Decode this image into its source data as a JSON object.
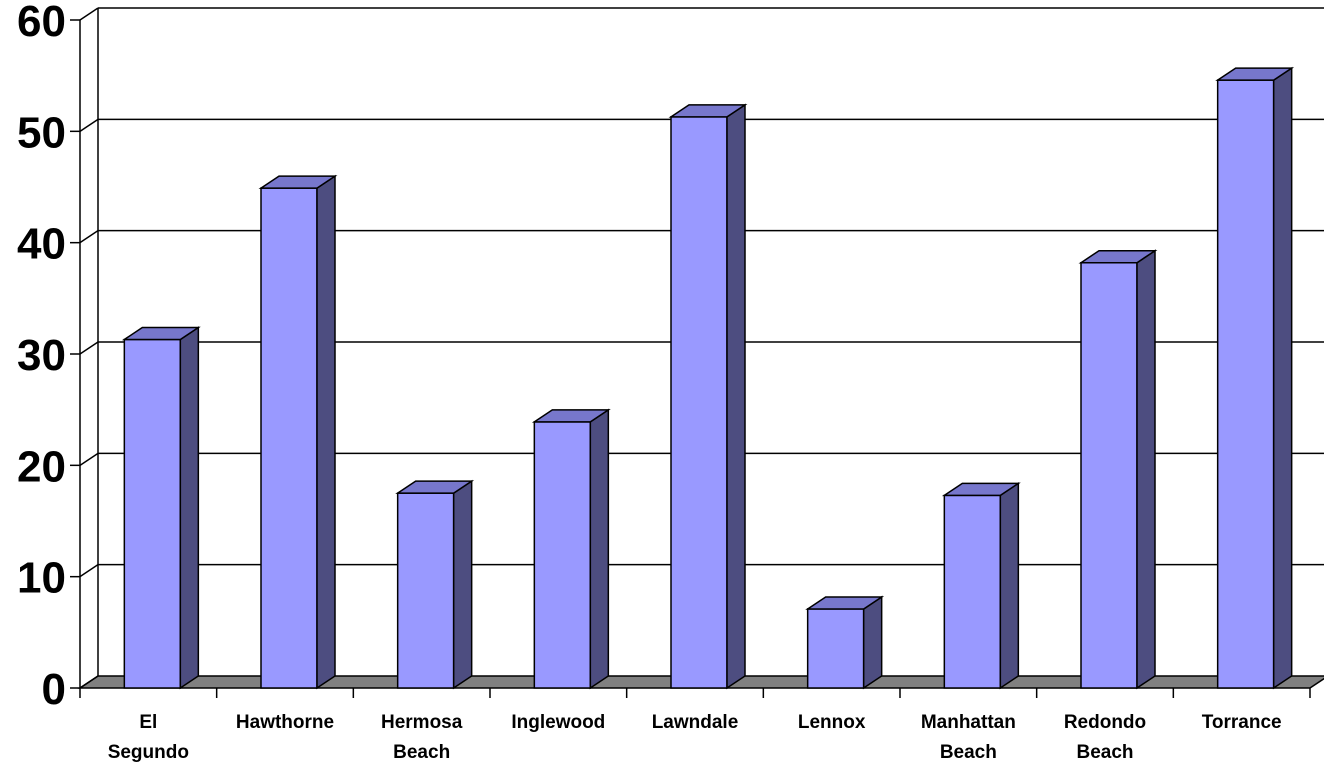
{
  "chart_data": {
    "type": "bar",
    "style": "3d-column",
    "categories": [
      [
        "El",
        "Segundo"
      ],
      [
        "Hawthorne"
      ],
      [
        "Hermosa",
        "Beach"
      ],
      [
        "Inglewood"
      ],
      [
        "Lawndale"
      ],
      [
        "Lennox"
      ],
      [
        "Manhattan",
        "Beach"
      ],
      [
        "Redondo",
        "Beach"
      ],
      [
        "Torrance"
      ]
    ],
    "values": [
      31.3,
      44.9,
      17.5,
      23.9,
      51.3,
      7.1,
      17.3,
      38.2,
      54.6
    ],
    "ylim": [
      0,
      60
    ],
    "yticks": [
      "0",
      "10",
      "20",
      "30",
      "40",
      "50",
      "60"
    ],
    "grid": true,
    "legend": "none",
    "colors": {
      "bar_front": "#9999ff",
      "bar_side": "#4d4d80",
      "bar_top": "#7777cc",
      "floor": "#808080",
      "gridline": "#000000"
    }
  }
}
